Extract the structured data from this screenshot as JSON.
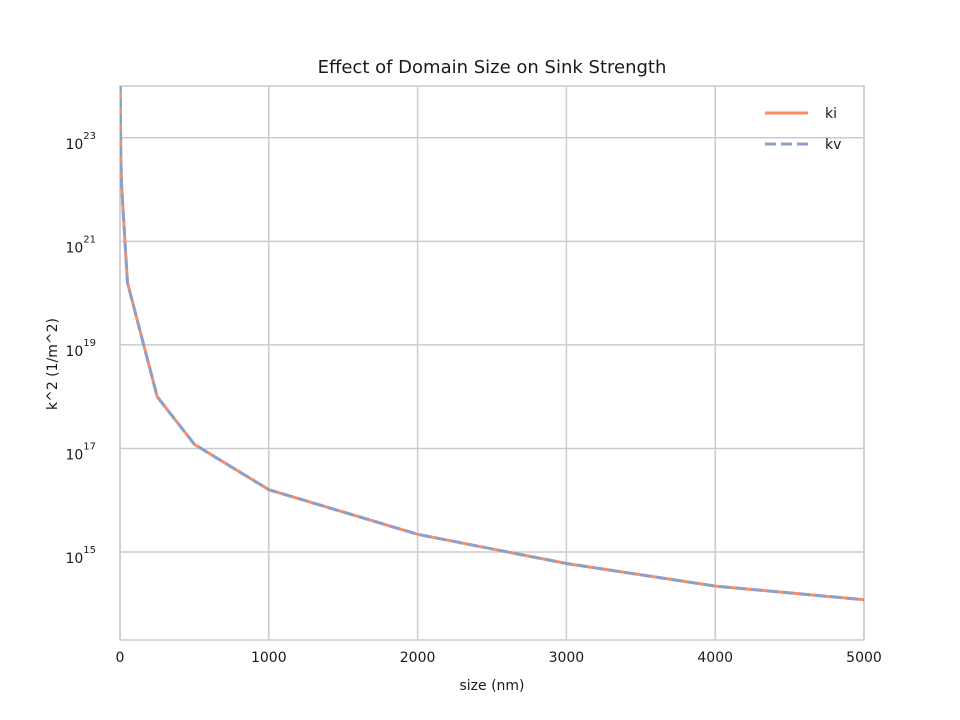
{
  "chart_data": {
    "type": "line",
    "title": "Effect of Domain Size on Sink Strength",
    "xlabel": "size (nm)",
    "ylabel": "k^2 (1/m^2)",
    "xlim": [
      0,
      5000
    ],
    "ylim": [
      20000000000000.0,
      1e+24
    ],
    "yscale": "log",
    "grid": true,
    "legend_position": "top-right",
    "x_ticks": [
      0,
      1000,
      2000,
      3000,
      4000,
      5000
    ],
    "y_ticks": [
      {
        "base": "10",
        "exp": "15",
        "value": 1000000000000000.0
      },
      {
        "base": "10",
        "exp": "17",
        "value": 1e+17
      },
      {
        "base": "10",
        "exp": "19",
        "value": 1e+19
      },
      {
        "base": "10",
        "exp": "21",
        "value": 1e+21
      },
      {
        "base": "10",
        "exp": "23",
        "value": 1e+23
      }
    ],
    "series": [
      {
        "name": "ki",
        "color": "#fc8d62",
        "style": "solid",
        "x": [
          1,
          5,
          10,
          50,
          250,
          500,
          1000,
          2000,
          3000,
          4000,
          5000
        ],
        "y": [
          1.2e+24,
          5e+22,
          1.3e+22,
          1.6e+20,
          1e+18,
          1.2e+17,
          1.6e+16,
          2200000000000000.0,
          600000000000000.0,
          220000000000000.0,
          120000000000000.0
        ]
      },
      {
        "name": "kv",
        "color": "#8da0cb",
        "style": "dashed",
        "x": [
          1,
          5,
          10,
          50,
          250,
          500,
          1000,
          2000,
          3000,
          4000,
          5000
        ],
        "y": [
          1.2e+24,
          5e+22,
          1.3e+22,
          1.6e+20,
          1e+18,
          1.2e+17,
          1.6e+16,
          2200000000000000.0,
          600000000000000.0,
          220000000000000.0,
          120000000000000.0
        ]
      }
    ]
  }
}
